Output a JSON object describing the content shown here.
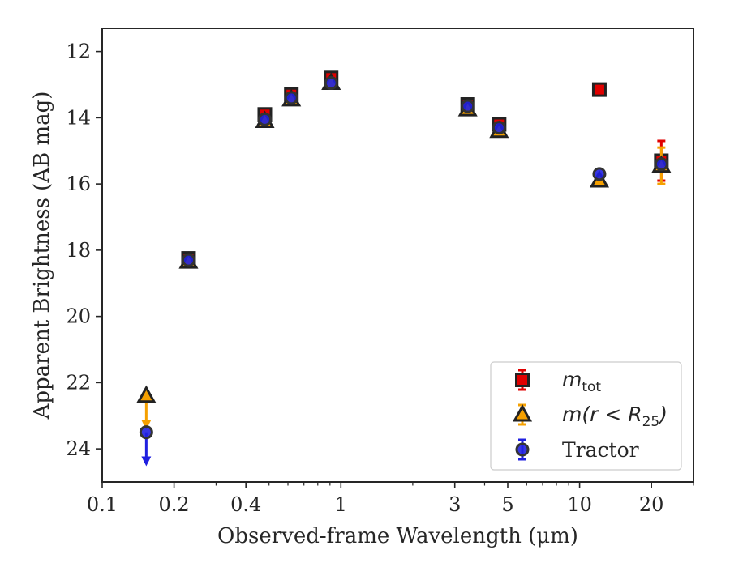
{
  "chart_data": {
    "type": "scatter",
    "xlabel": "Observed-frame Wavelength (μm)",
    "ylabel": "Apparent Brightness (AB mag)",
    "xscale": "log",
    "xlim": [
      0.1,
      30
    ],
    "ylim": [
      25,
      11.3
    ],
    "y_inverted": true,
    "grid": false,
    "legend_position": "lower-right",
    "x_ticks": [
      0.1,
      0.2,
      0.4,
      1,
      3,
      5,
      10,
      20
    ],
    "x_tick_labels": [
      "0.1",
      "0.2",
      "0.4",
      "1",
      "3",
      "5",
      "10",
      "20"
    ],
    "y_ticks": [
      12,
      14,
      16,
      18,
      20,
      22,
      24
    ],
    "y_tick_labels": [
      "12",
      "14",
      "16",
      "18",
      "20",
      "22",
      "24"
    ],
    "series": [
      {
        "name": "m_tot",
        "legend_main": "m",
        "legend_sub": "tot",
        "marker": "square",
        "color": "#e00000",
        "edge_color": "#222222",
        "points": [
          {
            "x": 0.23,
            "y": 18.25
          },
          {
            "x": 0.48,
            "y": 13.9
          },
          {
            "x": 0.62,
            "y": 13.3
          },
          {
            "x": 0.91,
            "y": 12.8
          },
          {
            "x": 3.4,
            "y": 13.6
          },
          {
            "x": 4.6,
            "y": 14.2
          },
          {
            "x": 12.1,
            "y": 13.15
          },
          {
            "x": 22.0,
            "y": 15.3,
            "err": 0.6
          }
        ]
      },
      {
        "name": "m(r < R_25)",
        "legend_main": "m(r < R",
        "legend_sub": "25",
        "legend_close": ")",
        "marker": "triangle",
        "color": "#f5a000",
        "edge_color": "#222222",
        "points": [
          {
            "x": 0.153,
            "y": 22.4,
            "limit": 23.35
          },
          {
            "x": 0.23,
            "y": 18.35
          },
          {
            "x": 0.48,
            "y": 14.1
          },
          {
            "x": 0.62,
            "y": 13.45
          },
          {
            "x": 0.91,
            "y": 12.95
          },
          {
            "x": 3.4,
            "y": 13.75
          },
          {
            "x": 4.6,
            "y": 14.4
          },
          {
            "x": 12.1,
            "y": 15.9
          },
          {
            "x": 22.0,
            "y": 15.45,
            "err": 0.55
          }
        ]
      },
      {
        "name": "Tractor",
        "marker": "circle",
        "color": "#2020e0",
        "edge_color": "#333333",
        "points": [
          {
            "x": 0.153,
            "y": 23.5,
            "limit": 24.45
          },
          {
            "x": 0.23,
            "y": 18.3
          },
          {
            "x": 0.48,
            "y": 14.05
          },
          {
            "x": 0.62,
            "y": 13.4
          },
          {
            "x": 0.91,
            "y": 12.95
          },
          {
            "x": 3.4,
            "y": 13.65
          },
          {
            "x": 4.6,
            "y": 14.3
          },
          {
            "x": 12.1,
            "y": 15.7
          },
          {
            "x": 22.0,
            "y": 15.4
          }
        ]
      }
    ]
  }
}
